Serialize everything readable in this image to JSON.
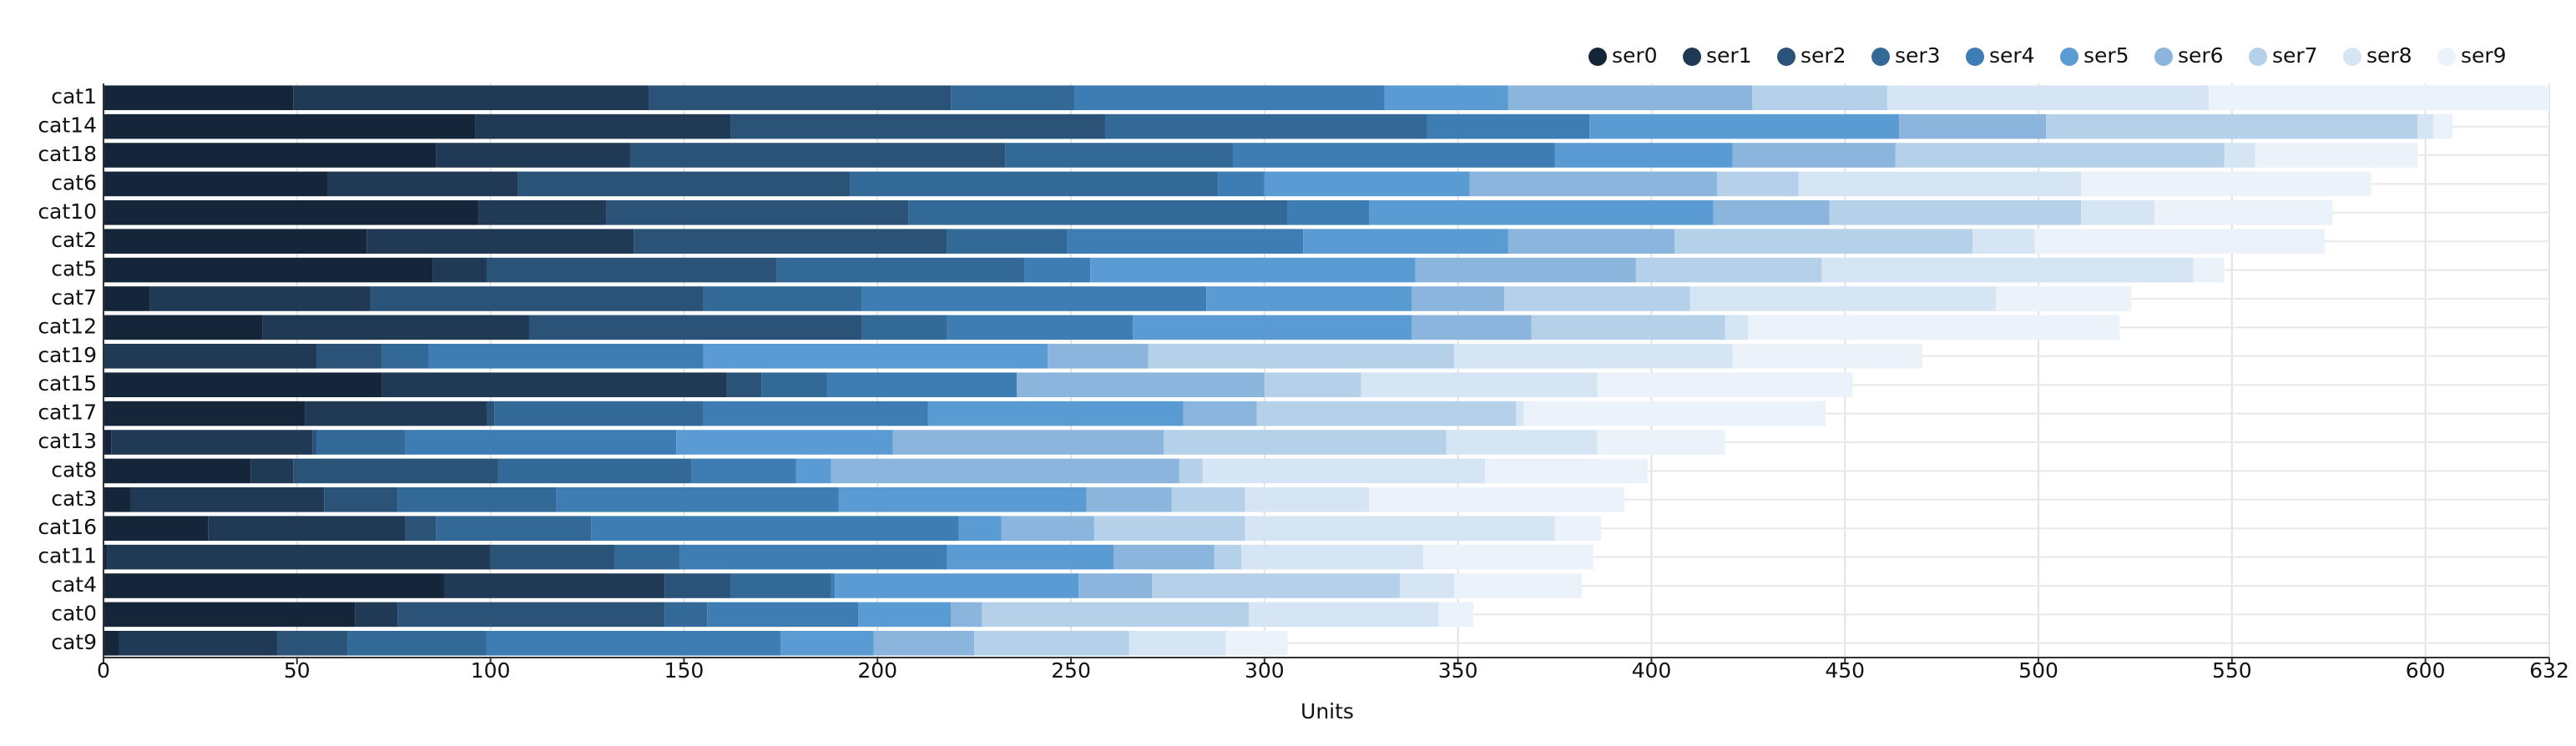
{
  "chart_data": {
    "type": "stacked-barh",
    "x_label": "Units",
    "categories": [
      "cat1",
      "cat14",
      "cat18",
      "cat6",
      "cat10",
      "cat2",
      "cat5",
      "cat7",
      "cat12",
      "cat19",
      "cat15",
      "cat17",
      "cat13",
      "cat8",
      "cat3",
      "cat16",
      "cat11",
      "cat4",
      "cat0",
      "cat9"
    ],
    "series": [
      {
        "name": "ser0",
        "color": "#16263a",
        "values": [
          49,
          96,
          86,
          58,
          97,
          68,
          85,
          12,
          41,
          0,
          72,
          52,
          2,
          38,
          7,
          27,
          1,
          88,
          65,
          4
        ]
      },
      {
        "name": "ser1",
        "color": "#203a55",
        "values": [
          92,
          66,
          50,
          49,
          33,
          69,
          14,
          57,
          69,
          55,
          89,
          47,
          52,
          11,
          50,
          51,
          99,
          57,
          11,
          41
        ]
      },
      {
        "name": "ser2",
        "color": "#2b5377",
        "values": [
          78,
          97,
          97,
          86,
          78,
          81,
          75,
          86,
          86,
          17,
          9,
          2,
          1,
          53,
          19,
          8,
          32,
          17,
          69,
          18
        ]
      },
      {
        "name": "ser3",
        "color": "#336996",
        "values": [
          32,
          83,
          59,
          95,
          98,
          31,
          64,
          41,
          22,
          12,
          17,
          54,
          23,
          50,
          41,
          40,
          17,
          26,
          11,
          36
        ]
      },
      {
        "name": "ser4",
        "color": "#3e7db4",
        "values": [
          80,
          42,
          83,
          12,
          21,
          61,
          17,
          89,
          48,
          71,
          49,
          58,
          70,
          27,
          73,
          95,
          69,
          1,
          39,
          76
        ]
      },
      {
        "name": "ser5",
        "color": "#5a9bd4",
        "values": [
          32,
          80,
          46,
          53,
          89,
          53,
          84,
          53,
          72,
          89,
          0,
          66,
          56,
          9,
          64,
          11,
          43,
          63,
          24,
          24
        ]
      },
      {
        "name": "ser6",
        "color": "#8bb5dc",
        "values": [
          63,
          38,
          42,
          64,
          30,
          43,
          57,
          24,
          31,
          26,
          64,
          19,
          70,
          90,
          22,
          24,
          26,
          19,
          8,
          26
        ]
      },
      {
        "name": "ser7",
        "color": "#b5d1ea",
        "values": [
          35,
          96,
          85,
          21,
          65,
          77,
          48,
          48,
          50,
          79,
          25,
          67,
          73,
          6,
          19,
          39,
          7,
          64,
          69,
          40
        ]
      },
      {
        "name": "ser8",
        "color": "#d6e5f3",
        "values": [
          83,
          4,
          8,
          73,
          19,
          16,
          96,
          79,
          6,
          72,
          61,
          2,
          39,
          73,
          32,
          80,
          47,
          14,
          49,
          25
        ]
      },
      {
        "name": "ser9",
        "color": "#ebf2f9",
        "values": [
          88,
          5,
          42,
          75,
          46,
          75,
          8,
          35,
          96,
          49,
          66,
          78,
          33,
          42,
          66,
          12,
          44,
          33,
          9,
          16
        ]
      }
    ],
    "xlim": [
      0,
      632
    ],
    "xticks": [
      0,
      50,
      100,
      150,
      200,
      250,
      300,
      350,
      400,
      450,
      500,
      550,
      600,
      632
    ],
    "grid": true
  }
}
